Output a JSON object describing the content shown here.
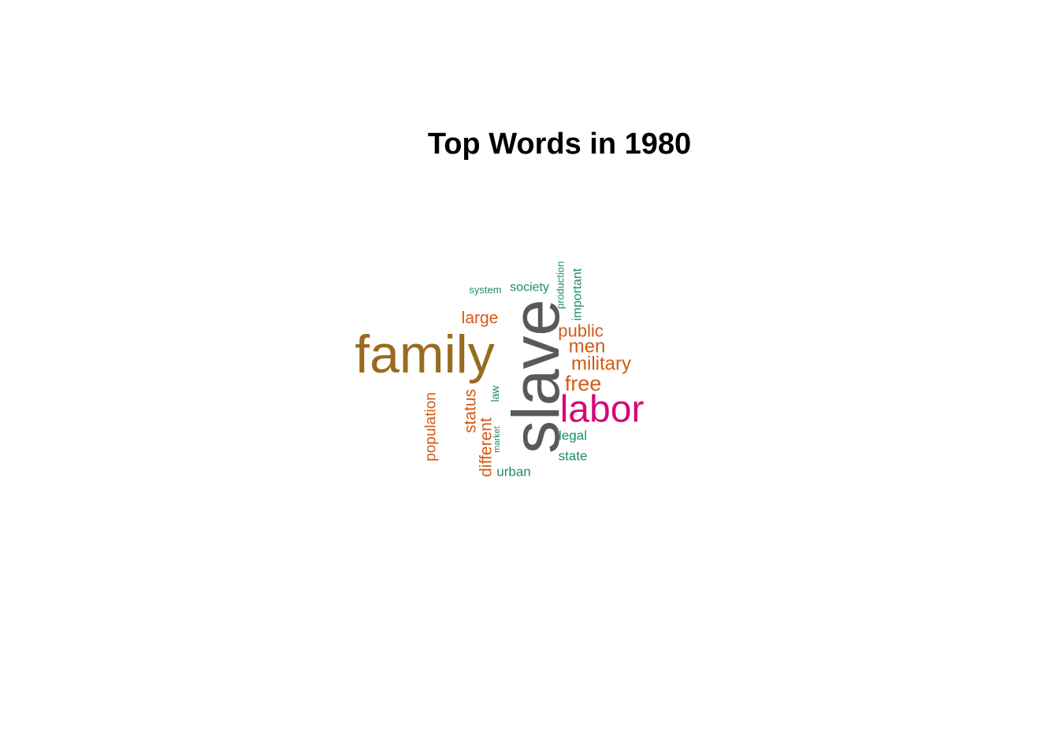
{
  "title": "Top Words in 1980",
  "colors": {
    "gray": "#595959",
    "brown": "#9a6b1e",
    "magenta": "#d6077a",
    "orange": "#d35a12",
    "green": "#1e8c6a"
  },
  "words": [
    {
      "text": "slave",
      "color": "gray"
    },
    {
      "text": "family",
      "color": "brown"
    },
    {
      "text": "labor",
      "color": "magenta"
    },
    {
      "text": "free",
      "color": "orange"
    },
    {
      "text": "military",
      "color": "orange"
    },
    {
      "text": "men",
      "color": "orange"
    },
    {
      "text": "public",
      "color": "orange"
    },
    {
      "text": "large",
      "color": "orange"
    },
    {
      "text": "status",
      "color": "orange"
    },
    {
      "text": "different",
      "color": "orange"
    },
    {
      "text": "population",
      "color": "orange"
    },
    {
      "text": "society",
      "color": "green"
    },
    {
      "text": "system",
      "color": "green"
    },
    {
      "text": "production",
      "color": "green"
    },
    {
      "text": "important",
      "color": "green"
    },
    {
      "text": "law",
      "color": "green"
    },
    {
      "text": "market",
      "color": "green"
    },
    {
      "text": "legal",
      "color": "green"
    },
    {
      "text": "state",
      "color": "green"
    },
    {
      "text": "urban",
      "color": "green"
    }
  ]
}
